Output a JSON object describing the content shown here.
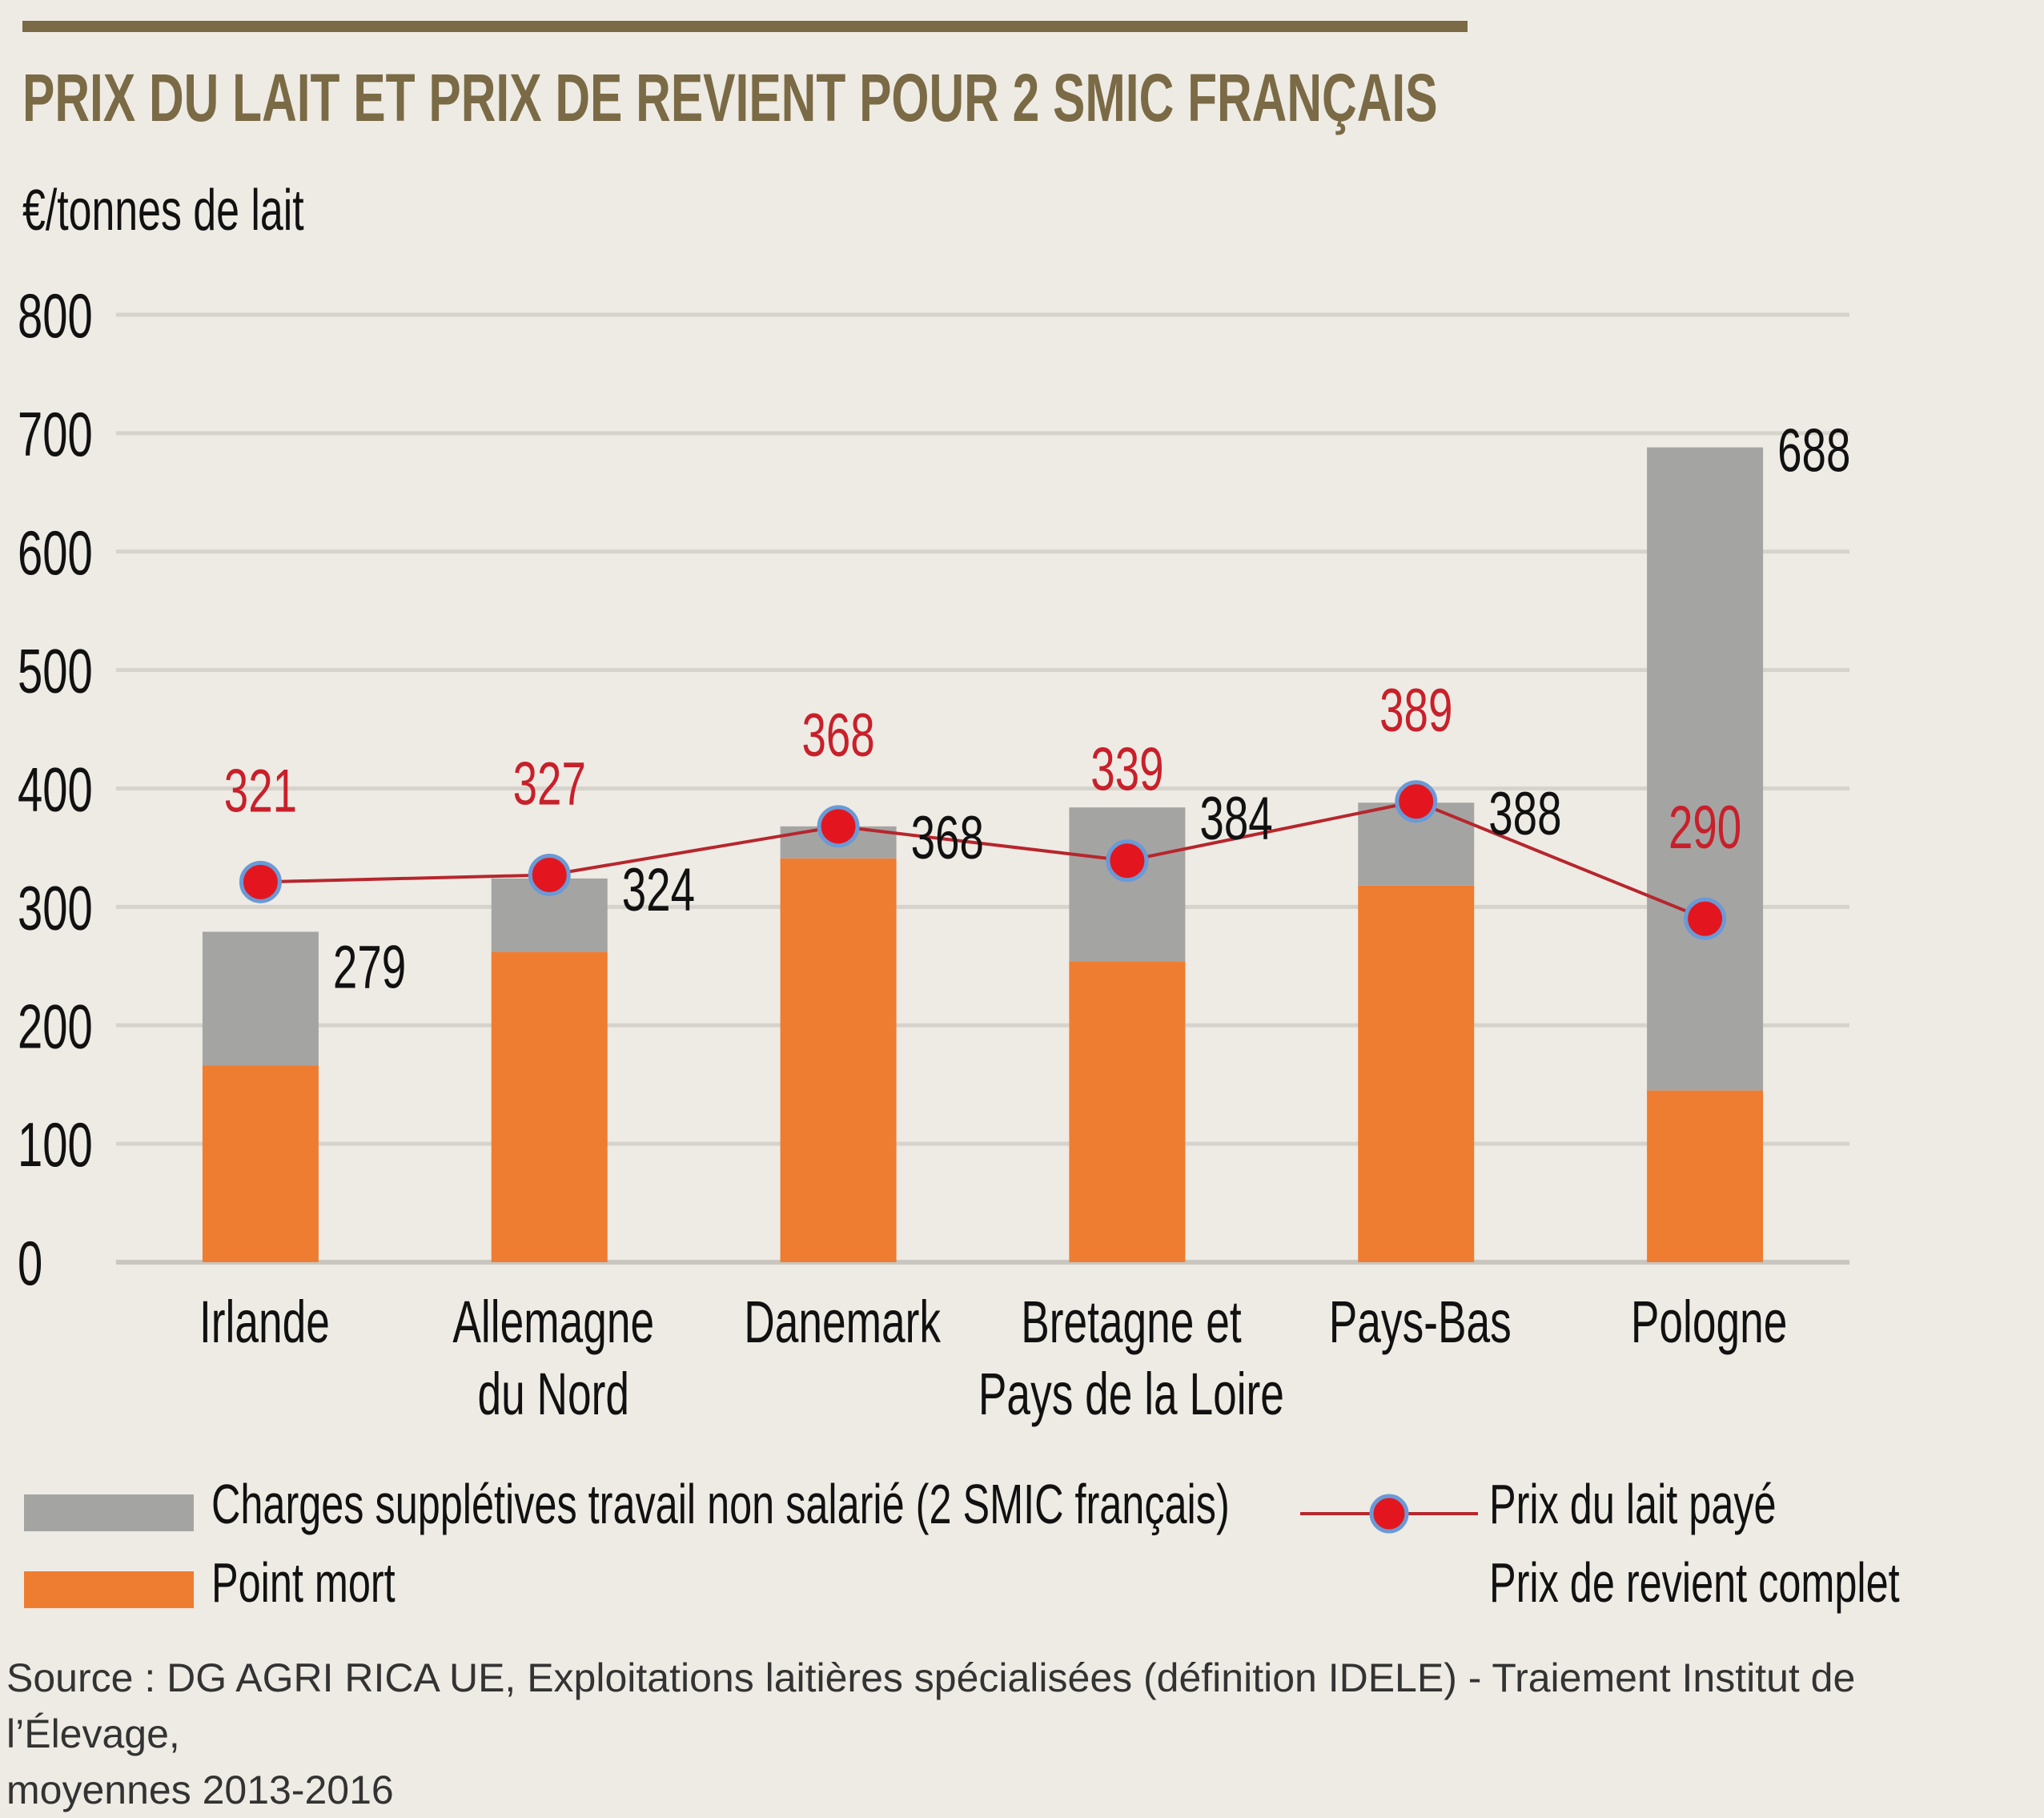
{
  "title": "PRIX DU LAIT ET PRIX DE REVIENT POUR 2 SMIC FRANÇAIS",
  "colors": {
    "title": "#7a6a45",
    "gray_bar": "#a4a4a3",
    "orange_bar": "#ee7d31",
    "line": "#b7262d",
    "marker_fill": "#e3161f",
    "marker_stroke": "#6a9ad6",
    "gridline": "#d6d3cc"
  },
  "chart_data": {
    "type": "bar",
    "stacked": true,
    "ylabel": "€/tonnes de lait",
    "ylim": [
      0,
      800
    ],
    "yticks": [
      0,
      100,
      200,
      300,
      400,
      500,
      600,
      700,
      800
    ],
    "grid": true,
    "categories": [
      [
        "Irlande"
      ],
      [
        "Allemagne",
        "du Nord"
      ],
      [
        "Danemark"
      ],
      [
        "Bretagne et",
        "Pays de la Loire"
      ],
      [
        "Pays-Bas"
      ],
      [
        "Pologne"
      ]
    ],
    "series": [
      {
        "name": "Point mort",
        "kind": "bar",
        "values": [
          166,
          262,
          341,
          254,
          318,
          145
        ]
      },
      {
        "name": "Charges supplétives travail non salarié (2 SMIC français)",
        "kind": "bar",
        "values": [
          113,
          62,
          27,
          130,
          70,
          543
        ]
      },
      {
        "name": "Prix du lait payé",
        "kind": "line",
        "values": [
          321,
          327,
          368,
          339,
          389,
          290
        ]
      }
    ],
    "totals": {
      "name": "Prix de revient complet",
      "values": [
        279,
        324,
        368,
        384,
        388,
        688
      ]
    },
    "price_labels": [
      "321",
      "327",
      "368",
      "339",
      "389",
      "290"
    ],
    "total_labels": [
      "279",
      "324",
      "368",
      "384",
      "388",
      "688"
    ]
  },
  "legend": {
    "gray": "Charges supplétives travail non salarié (2 SMIC français)",
    "orange": "Point mort",
    "line": "Prix du lait payé",
    "total": "Prix de revient complet"
  },
  "source": {
    "line1": "Source : DG AGRI RICA UE, Exploitations laitières spécialisées (définition IDELE) - Traiement Institut de l’Élevage,",
    "line2": "moyennes 2013-2016"
  }
}
